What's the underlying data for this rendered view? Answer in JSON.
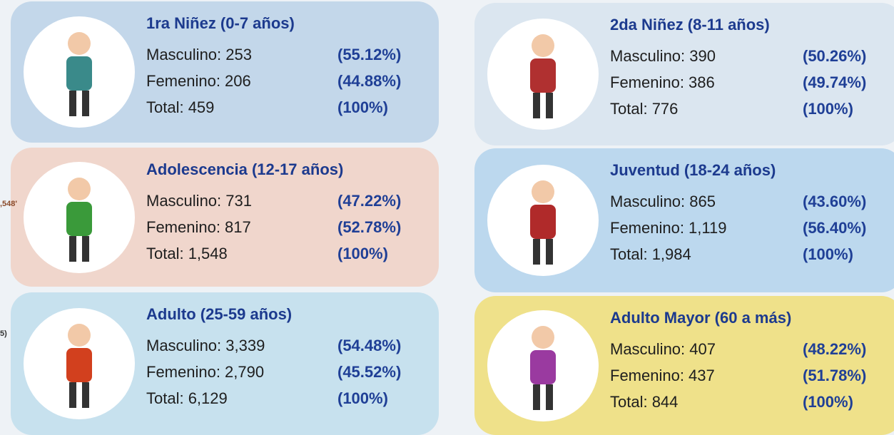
{
  "cards": [
    {
      "title": "1ra Niñez (0-7 años)",
      "rows": [
        {
          "label": "Masculino: 253",
          "percent": "(55.12%)"
        },
        {
          "label": "Femenino: 206",
          "percent": "(44.88%)"
        },
        {
          "label": "Total: 459",
          "percent": "(100%)"
        }
      ]
    },
    {
      "title": "2da Niñez (8-11 años)",
      "rows": [
        {
          "label": "Masculino: 390",
          "percent": "(50.26%)"
        },
        {
          "label": "Femenino: 386",
          "percent": "(49.74%)"
        },
        {
          "label": "Total: 776",
          "percent": "(100%)"
        }
      ]
    },
    {
      "title": "Adolescencia (12-17 años)",
      "rows": [
        {
          "label": "Masculino: 731",
          "percent": "(47.22%)"
        },
        {
          "label": "Femenino: 817",
          "percent": "(52.78%)"
        },
        {
          "label": "Total: 1,548",
          "percent": "(100%)"
        }
      ]
    },
    {
      "title": "Juventud (18-24 años)",
      "rows": [
        {
          "label": "Masculino: 865",
          "percent": "(43.60%)"
        },
        {
          "label": "Femenino: 1,119",
          "percent": "(56.40%)"
        },
        {
          "label": "Total: 1,984",
          "percent": "(100%)"
        }
      ]
    },
    {
      "title": "Adulto (25-59 años)",
      "rows": [
        {
          "label": "Masculino: 3,339",
          "percent": "(54.48%)"
        },
        {
          "label": "Femenino: 2,790",
          "percent": "(45.52%)"
        },
        {
          "label": "Total: 6,129",
          "percent": "(100%)"
        }
      ]
    },
    {
      "title": "Adulto Mayor (60 a más)",
      "rows": [
        {
          "label": "Masculino: 407",
          "percent": "(48.22%)"
        },
        {
          "label": "Femenino: 437",
          "percent": "(51.78%)"
        },
        {
          "label": "Total: 844",
          "percent": "(100%)"
        }
      ]
    }
  ],
  "edge_fragments": [
    ",548'",
    "5)"
  ]
}
